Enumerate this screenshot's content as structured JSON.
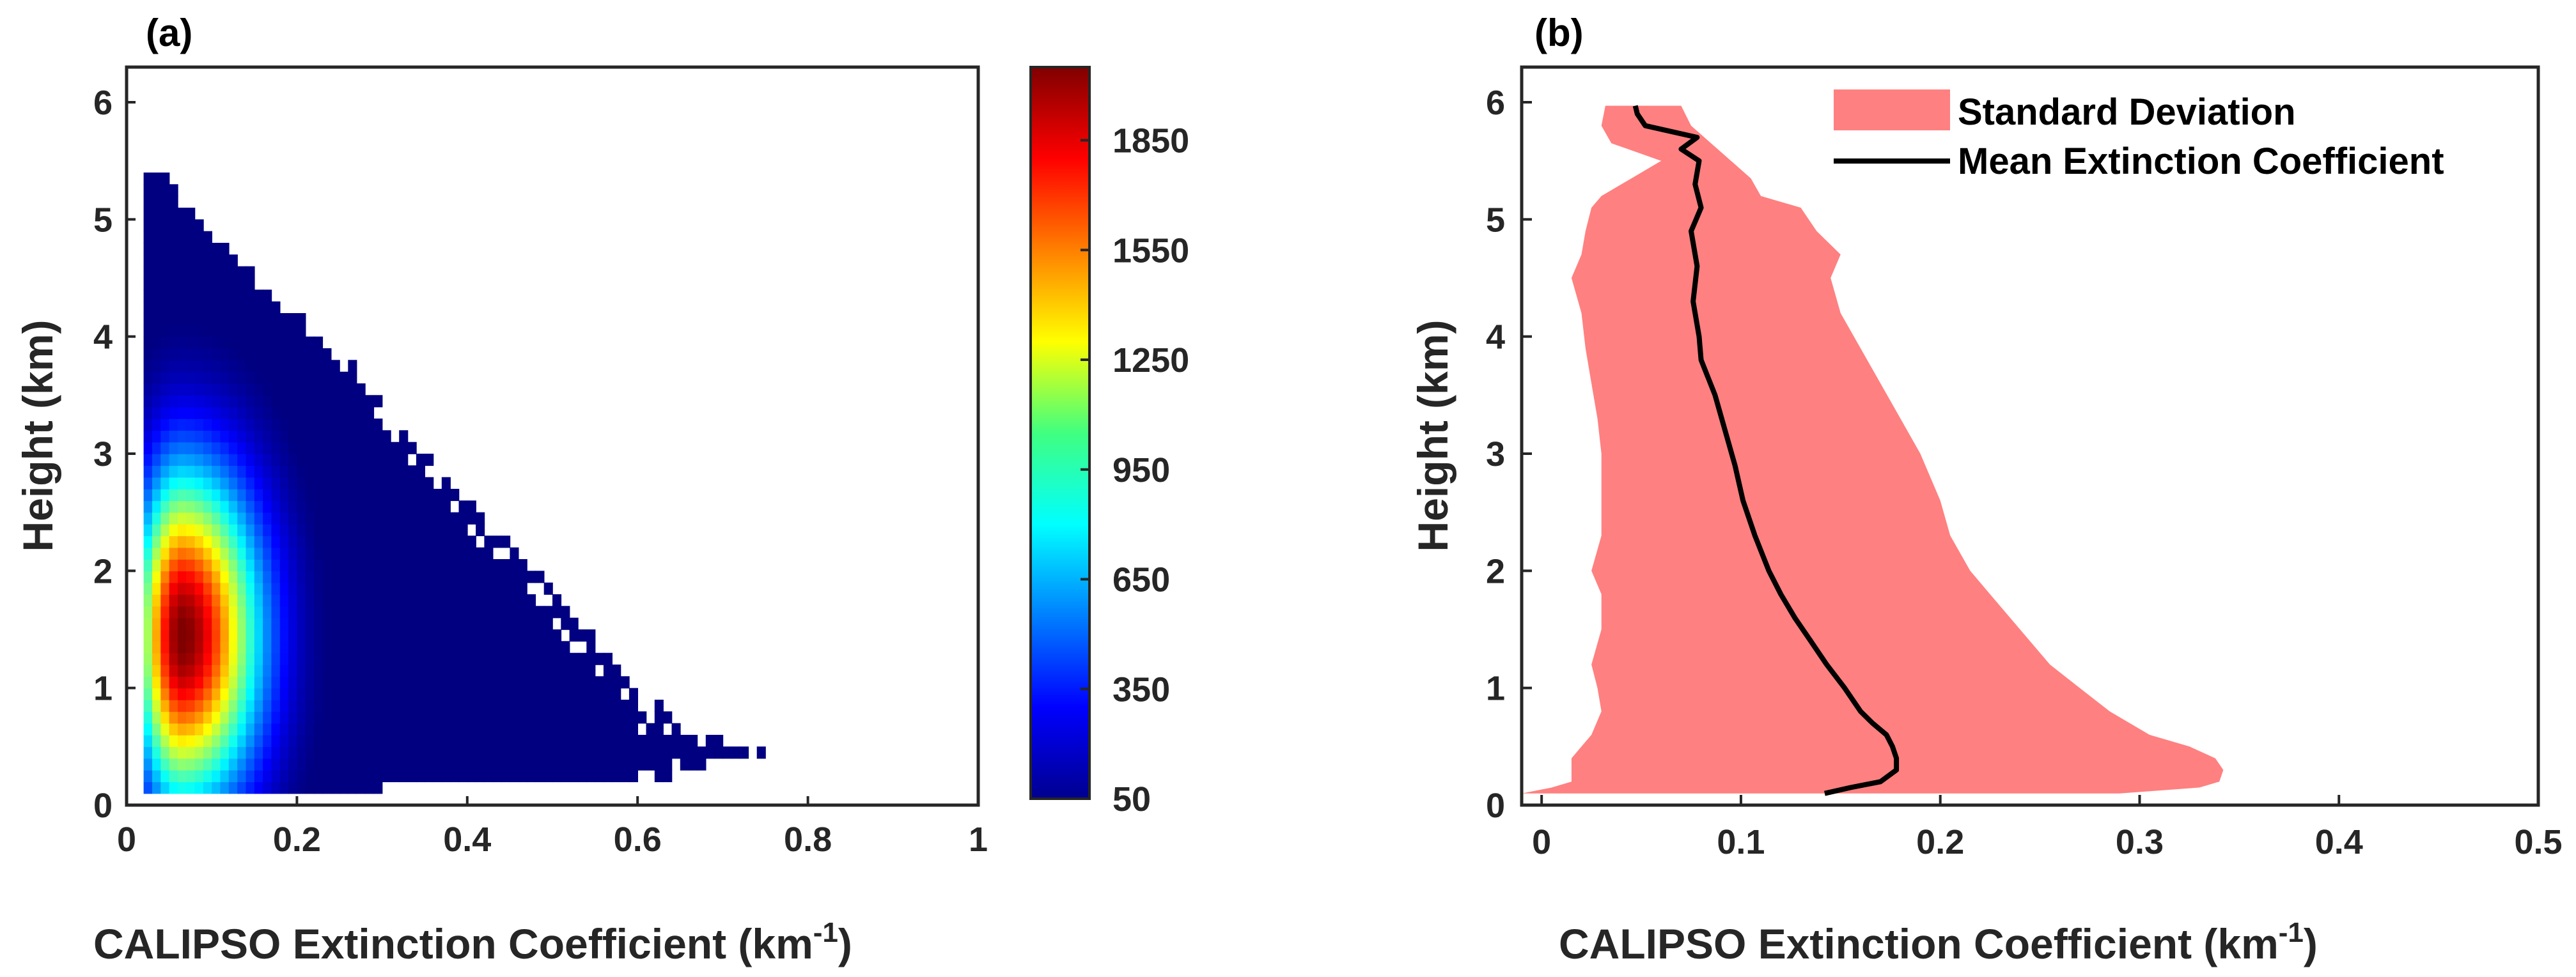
{
  "chart_data": [
    {
      "panel": "(a)",
      "type": "heatmap",
      "xlabel": "CALIPSO Extinction Coefficient (km",
      "xlabel_sup": "-1",
      "xlabel_tail": ")",
      "ylabel": "Height (km)",
      "xlim": [
        0,
        1
      ],
      "ylim": [
        0,
        6.3
      ],
      "xticks": [
        "0",
        "0.2",
        "0.4",
        "0.6",
        "0.8",
        "1"
      ],
      "xtick_values": [
        0,
        0.2,
        0.4,
        0.6,
        0.8,
        1.0
      ],
      "yticks": [
        "0",
        "1",
        "2",
        "3",
        "4",
        "5",
        "6"
      ],
      "ytick_values": [
        0,
        1,
        2,
        3,
        4,
        5,
        6
      ],
      "colorbar": {
        "ticks": [
          "50",
          "350",
          "650",
          "950",
          "1250",
          "1550",
          "1850"
        ],
        "tick_values": [
          50,
          350,
          650,
          950,
          1250,
          1550,
          1850
        ],
        "range": [
          50,
          2050
        ],
        "colormap": "jet"
      },
      "bins": {
        "x_width": 0.01,
        "y_width": 0.1,
        "x_start": 0.02,
        "y_start": 0.1
      },
      "rows": [
        {
          "y": 0.1,
          "xmax": 0.3
        },
        {
          "y": 0.2,
          "xmax": 0.64
        },
        {
          "y": 0.3,
          "xmax": 0.69
        },
        {
          "y": 0.4,
          "xmax": 0.76
        },
        {
          "y": 0.6,
          "xmax": 0.65
        },
        {
          "y": 0.8,
          "xmax": 0.63
        },
        {
          "y": 1.0,
          "xmax": 0.6
        },
        {
          "y": 1.2,
          "xmax": 0.57
        },
        {
          "y": 1.5,
          "xmax": 0.53
        },
        {
          "y": 1.8,
          "xmax": 0.5
        },
        {
          "y": 2.0,
          "xmax": 0.47
        },
        {
          "y": 2.3,
          "xmax": 0.43
        },
        {
          "y": 2.6,
          "xmax": 0.39
        },
        {
          "y": 3.0,
          "xmax": 0.34
        },
        {
          "y": 3.4,
          "xmax": 0.3
        },
        {
          "y": 3.8,
          "xmax": 0.25
        },
        {
          "y": 4.2,
          "xmax": 0.19
        },
        {
          "y": 4.6,
          "xmax": 0.13
        },
        {
          "y": 5.0,
          "xmax": 0.07
        },
        {
          "y": 5.3,
          "xmax": 0.04
        }
      ],
      "peak": {
        "x": 0.06,
        "y": 1.4,
        "value": 2050
      }
    },
    {
      "panel": "(b)",
      "type": "area",
      "xlabel": "CALIPSO Extinction Coefficient (km",
      "xlabel_sup": "-1",
      "xlabel_tail": ")",
      "ylabel": "Height (km)",
      "xlim": [
        -0.01,
        0.5
      ],
      "ylim": [
        0,
        6.3
      ],
      "xticks": [
        "0",
        "0.1",
        "0.2",
        "0.3",
        "0.4",
        "0.5"
      ],
      "xtick_values": [
        0,
        0.1,
        0.2,
        0.3,
        0.4,
        0.5
      ],
      "yticks": [
        "0",
        "1",
        "2",
        "3",
        "4",
        "5",
        "6"
      ],
      "ytick_values": [
        0,
        1,
        2,
        3,
        4,
        5,
        6
      ],
      "legend": {
        "position": "top-right",
        "entries": [
          "Standard Deviation",
          "Mean Extinction Coefficient"
        ]
      },
      "colors": {
        "band": "#ff8080",
        "mean": "#000000"
      },
      "series": [
        {
          "name": "Mean Extinction Coefficient",
          "height": [
            0.1,
            0.15,
            0.2,
            0.3,
            0.4,
            0.5,
            0.6,
            0.7,
            0.8,
            1.0,
            1.2,
            1.4,
            1.6,
            1.8,
            2.0,
            2.3,
            2.6,
            2.9,
            3.2,
            3.5,
            3.8,
            4.0,
            4.3,
            4.6,
            4.9,
            5.1,
            5.3,
            5.5,
            5.6,
            5.7,
            5.8,
            5.9,
            5.97
          ],
          "values": [
            0.142,
            0.155,
            0.17,
            0.178,
            0.178,
            0.176,
            0.173,
            0.166,
            0.16,
            0.152,
            0.143,
            0.135,
            0.127,
            0.12,
            0.114,
            0.107,
            0.101,
            0.097,
            0.092,
            0.087,
            0.08,
            0.079,
            0.076,
            0.078,
            0.075,
            0.08,
            0.077,
            0.079,
            0.07,
            0.078,
            0.052,
            0.048,
            0.047
          ]
        },
        {
          "name": "Standard Deviation",
          "height": [
            0.1,
            0.15,
            0.2,
            0.3,
            0.4,
            0.5,
            0.6,
            0.8,
            1.0,
            1.2,
            1.5,
            1.8,
            2.0,
            2.3,
            2.6,
            3.0,
            3.3,
            3.6,
            3.9,
            4.2,
            4.5,
            4.7,
            4.9,
            5.1,
            5.2,
            5.35,
            5.5,
            5.65,
            5.8,
            5.97
          ],
          "lower": [
            -0.01,
            0.005,
            0.015,
            0.015,
            0.015,
            0.02,
            0.025,
            0.03,
            0.028,
            0.025,
            0.03,
            0.03,
            0.025,
            0.03,
            0.03,
            0.03,
            0.028,
            0.025,
            0.022,
            0.02,
            0.015,
            0.02,
            0.022,
            0.025,
            0.03,
            0.045,
            0.06,
            0.035,
            0.03,
            0.032
          ],
          "upper": [
            0.29,
            0.33,
            0.34,
            0.342,
            0.338,
            0.325,
            0.305,
            0.285,
            0.27,
            0.255,
            0.24,
            0.225,
            0.215,
            0.205,
            0.2,
            0.19,
            0.18,
            0.17,
            0.16,
            0.15,
            0.145,
            0.15,
            0.138,
            0.13,
            0.11,
            0.105,
            0.095,
            0.085,
            0.075,
            0.07
          ]
        }
      ]
    }
  ]
}
